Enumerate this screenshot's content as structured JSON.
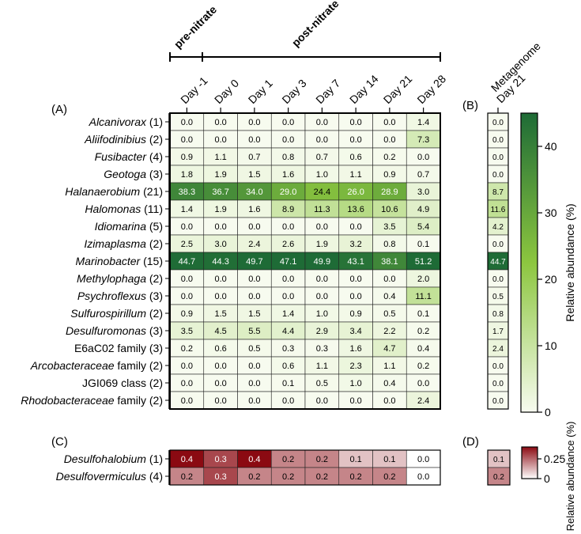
{
  "chart_data": [
    {
      "panel": "A",
      "type": "heatmap",
      "columns": [
        "Day -1",
        "Day 0",
        "Day 1",
        "Day 3",
        "Day 7",
        "Day 14",
        "Day 21",
        "Day 28"
      ],
      "phase_labels": {
        "pre": "pre-nitrate",
        "post": "post-nitrate"
      },
      "rows": [
        {
          "taxon": "Alcanivorax",
          "count": "(1)",
          "italic": true,
          "values": [
            0.0,
            0.0,
            0.0,
            0.0,
            0.0,
            0.0,
            0.0,
            1.4
          ]
        },
        {
          "taxon": "Aliifodinibius",
          "count": "(2)",
          "italic": true,
          "values": [
            0.0,
            0.0,
            0.0,
            0.0,
            0.0,
            0.0,
            0.0,
            7.3
          ]
        },
        {
          "taxon": "Fusibacter",
          "count": "(4)",
          "italic": true,
          "values": [
            0.9,
            1.1,
            0.7,
            0.8,
            0.7,
            0.6,
            0.2,
            0.0
          ]
        },
        {
          "taxon": "Geotoga",
          "count": "(3)",
          "italic": true,
          "values": [
            1.8,
            1.9,
            1.5,
            1.6,
            1.0,
            1.1,
            0.9,
            0.7
          ]
        },
        {
          "taxon": "Halanaerobium",
          "count": "(21)",
          "italic": true,
          "values": [
            38.3,
            36.7,
            34.0,
            29.0,
            24.4,
            26.0,
            28.9,
            3.0
          ]
        },
        {
          "taxon": "Halomonas",
          "count": "(11)",
          "italic": true,
          "values": [
            1.4,
            1.9,
            1.6,
            8.9,
            11.3,
            13.6,
            10.6,
            4.9
          ]
        },
        {
          "taxon": "Idiomarina",
          "count": "(5)",
          "italic": true,
          "values": [
            0.0,
            0.0,
            0.0,
            0.0,
            0.0,
            0.0,
            3.5,
            5.4
          ]
        },
        {
          "taxon": "Izimaplasma",
          "count": "(2)",
          "italic": true,
          "values": [
            2.5,
            3.0,
            2.4,
            2.6,
            1.9,
            3.2,
            0.8,
            0.1
          ]
        },
        {
          "taxon": "Marinobacter",
          "count": "(15)",
          "italic": true,
          "values": [
            44.7,
            44.3,
            49.7,
            47.1,
            49.9,
            43.1,
            38.1,
            51.2
          ]
        },
        {
          "taxon": "Methylophaga",
          "count": "(2)",
          "italic": true,
          "values": [
            0.0,
            0.0,
            0.0,
            0.0,
            0.0,
            0.0,
            0.0,
            2.0
          ]
        },
        {
          "taxon": "Psychroflexus",
          "count": "(3)",
          "italic": true,
          "values": [
            0.0,
            0.0,
            0.0,
            0.0,
            0.0,
            0.0,
            0.4,
            11.1
          ]
        },
        {
          "taxon": "Sulfurospirillum",
          "count": "(2)",
          "italic": true,
          "values": [
            0.9,
            1.5,
            1.5,
            1.4,
            1.0,
            0.9,
            0.5,
            0.1
          ]
        },
        {
          "taxon": "Desulfuromonas",
          "count": "(3)",
          "italic": true,
          "values": [
            3.5,
            4.5,
            5.5,
            4.4,
            2.9,
            3.4,
            2.2,
            0.2
          ]
        },
        {
          "taxon": "E6aC02 family",
          "count": "(3)",
          "italic": false,
          "values": [
            0.2,
            0.6,
            0.5,
            0.3,
            0.3,
            1.6,
            4.7,
            0.4
          ]
        },
        {
          "taxon": "Arcobacteraceae",
          "suffix": " family",
          "count": "(2)",
          "italic": true,
          "values": [
            0.0,
            0.0,
            0.0,
            0.6,
            1.1,
            2.3,
            1.1,
            0.2
          ]
        },
        {
          "taxon": "JGI069 class",
          "count": "(2)",
          "italic": false,
          "values": [
            0.0,
            0.0,
            0.0,
            0.1,
            0.5,
            1.0,
            0.4,
            0.0
          ]
        },
        {
          "taxon": "Rhodobacteraceae",
          "suffix": " family",
          "count": "(2)",
          "italic": true,
          "values": [
            0.0,
            0.0,
            0.0,
            0.0,
            0.0,
            0.0,
            0.0,
            2.4
          ]
        }
      ]
    },
    {
      "panel": "B",
      "type": "heatmap",
      "column_lines": [
        "Metagenome",
        "Day 21"
      ],
      "values": [
        0.0,
        0.0,
        0.0,
        0.0,
        8.7,
        11.6,
        4.2,
        0.0,
        44.7,
        0.0,
        0.5,
        0.8,
        1.7,
        2.4,
        0.0,
        0.0,
        0.0
      ]
    },
    {
      "panel": "C",
      "type": "heatmap",
      "rows": [
        {
          "taxon": "Desulfohalobium",
          "count": "(1)",
          "italic": true,
          "values": [
            0.4,
            0.3,
            0.4,
            0.2,
            0.2,
            0.1,
            0.1,
            0.0
          ]
        },
        {
          "taxon": "Desulfovermiculus",
          "count": "(4)",
          "italic": true,
          "values": [
            0.2,
            0.3,
            0.2,
            0.2,
            0.2,
            0.2,
            0.2,
            0.0
          ]
        }
      ]
    },
    {
      "panel": "D",
      "type": "heatmap",
      "values": [
        0.1,
        0.2
      ]
    }
  ],
  "colorbar_green": {
    "label": "Relative abundance (%)",
    "ticks": [
      0,
      10,
      20,
      30,
      40
    ],
    "range": [
      0,
      45
    ],
    "low_color": "#f7fbef",
    "mid_color": "#8cc63f",
    "high_color": "#1e6b36"
  },
  "colorbar_red": {
    "label": "Relative abundance (%)",
    "ticks": [
      "0",
      "0.25"
    ],
    "tick_values": [
      0,
      0.25
    ],
    "range": [
      0,
      0.4
    ],
    "low_color": "#ffffff",
    "high_color": "#8b0a12"
  },
  "panel_labels": {
    "a": "(A)",
    "b": "(B)",
    "c": "(C)",
    "d": "(D)"
  }
}
